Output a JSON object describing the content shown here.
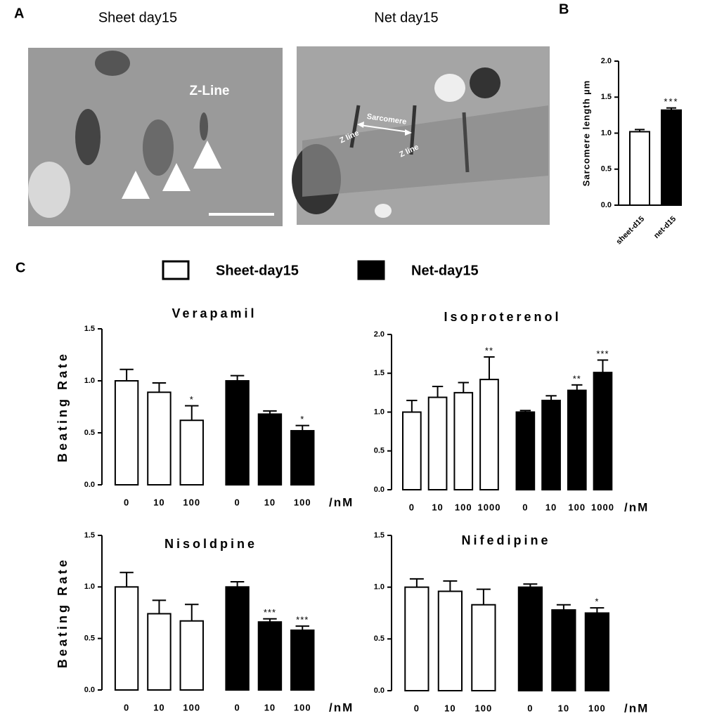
{
  "labels": {
    "panel_a": "A",
    "panel_b": "B",
    "panel_c": "C",
    "sheet_title": "Sheet day15",
    "net_title": "Net day15",
    "z_line": "Z-Line",
    "sarcomere": "Sarcomere",
    "z_line_left": "Z line",
    "z_line_right": "Z line"
  },
  "legend": [
    {
      "name": "Sheet-day15",
      "color": "#ffffff"
    },
    {
      "name": "Net-day15",
      "color": "#000000"
    }
  ],
  "chart_data": [
    {
      "type": "bar",
      "ylabel": "Sarcomere length µm",
      "categories": [
        "sheet-d15",
        "net-d15"
      ],
      "values": [
        1.02,
        1.32
      ],
      "errors": [
        0.03,
        0.03
      ],
      "sig": [
        null,
        "***"
      ],
      "colors": [
        "#ffffff",
        "#000000"
      ],
      "ylim": [
        0,
        2
      ],
      "yticks": [
        {
          "value": 0,
          "label": "0.0"
        },
        {
          "value": 0.5,
          "label": "0.5"
        },
        {
          "value": 1,
          "label": "1.0"
        },
        {
          "value": 1.5,
          "label": "1.5"
        },
        {
          "value": 2,
          "label": "2.0"
        }
      ]
    },
    {
      "type": "grouped_bar",
      "title": "Verapamil",
      "ylabel": "Beating Rate",
      "x_unit": "/nM",
      "categories": [
        "0",
        "10",
        "100"
      ],
      "series": [
        {
          "color": "#ffffff",
          "values": [
            1.0,
            0.89,
            0.62
          ],
          "errors": [
            0.11,
            0.09,
            0.14
          ],
          "sig": [
            null,
            null,
            "*"
          ]
        },
        {
          "color": "#000000",
          "values": [
            1.0,
            0.68,
            0.52
          ],
          "errors": [
            0.05,
            0.03,
            0.05
          ],
          "sig": [
            null,
            null,
            "*"
          ]
        }
      ],
      "ylim": [
        0,
        1.5
      ],
      "yticks": [
        {
          "value": 0,
          "label": "0.0"
        },
        {
          "value": 0.5,
          "label": "0.5"
        },
        {
          "value": 1,
          "label": "1.0"
        },
        {
          "value": 1.5,
          "label": "1.5"
        }
      ]
    },
    {
      "type": "grouped_bar",
      "title": "Isoproterenol",
      "x_unit": "/nM",
      "categories": [
        "0",
        "10",
        "100",
        "1000"
      ],
      "series": [
        {
          "color": "#ffffff",
          "values": [
            1.0,
            1.19,
            1.25,
            1.42
          ],
          "errors": [
            0.15,
            0.14,
            0.13,
            0.29
          ],
          "sig": [
            null,
            null,
            null,
            "**"
          ]
        },
        {
          "color": "#000000",
          "values": [
            1.0,
            1.15,
            1.28,
            1.51
          ],
          "errors": [
            0.02,
            0.06,
            0.07,
            0.16
          ],
          "sig": [
            null,
            null,
            "**",
            "***"
          ]
        }
      ],
      "ylim": [
        0,
        2
      ],
      "yticks": [
        {
          "value": 0,
          "label": "0.0"
        },
        {
          "value": 0.5,
          "label": "0.5"
        },
        {
          "value": 1,
          "label": "1.0"
        },
        {
          "value": 1.5,
          "label": "1.5"
        },
        {
          "value": 2,
          "label": "2.0"
        }
      ]
    },
    {
      "type": "grouped_bar",
      "title": "Nisoldpine",
      "ylabel": "Beating Rate",
      "x_unit": "/nM",
      "categories": [
        "0",
        "10",
        "100"
      ],
      "series": [
        {
          "color": "#ffffff",
          "values": [
            1.0,
            0.74,
            0.67
          ],
          "errors": [
            0.14,
            0.13,
            0.16
          ],
          "sig": [
            null,
            null,
            null
          ]
        },
        {
          "color": "#000000",
          "values": [
            1.0,
            0.66,
            0.58
          ],
          "errors": [
            0.05,
            0.03,
            0.04
          ],
          "sig": [
            null,
            "***",
            "***"
          ]
        }
      ],
      "ylim": [
        0,
        1.5
      ],
      "yticks": [
        {
          "value": 0,
          "label": "0.0"
        },
        {
          "value": 0.5,
          "label": "0.5"
        },
        {
          "value": 1,
          "label": "1.0"
        },
        {
          "value": 1.5,
          "label": "1.5"
        }
      ]
    },
    {
      "type": "grouped_bar",
      "title": "Nifedipine",
      "x_unit": "/nM",
      "categories": [
        "0",
        "10",
        "100"
      ],
      "series": [
        {
          "color": "#ffffff",
          "values": [
            1.0,
            0.96,
            0.83
          ],
          "errors": [
            0.08,
            0.1,
            0.15
          ],
          "sig": [
            null,
            null,
            null
          ]
        },
        {
          "color": "#000000",
          "values": [
            1.0,
            0.78,
            0.75
          ],
          "errors": [
            0.03,
            0.05,
            0.05
          ],
          "sig": [
            null,
            null,
            "*"
          ]
        }
      ],
      "ylim": [
        0,
        1.5
      ],
      "yticks": [
        {
          "value": 0,
          "label": "0.0"
        },
        {
          "value": 0.5,
          "label": "0.5"
        },
        {
          "value": 1,
          "label": "1.0"
        },
        {
          "value": 1.5,
          "label": "1.5"
        }
      ]
    }
  ]
}
